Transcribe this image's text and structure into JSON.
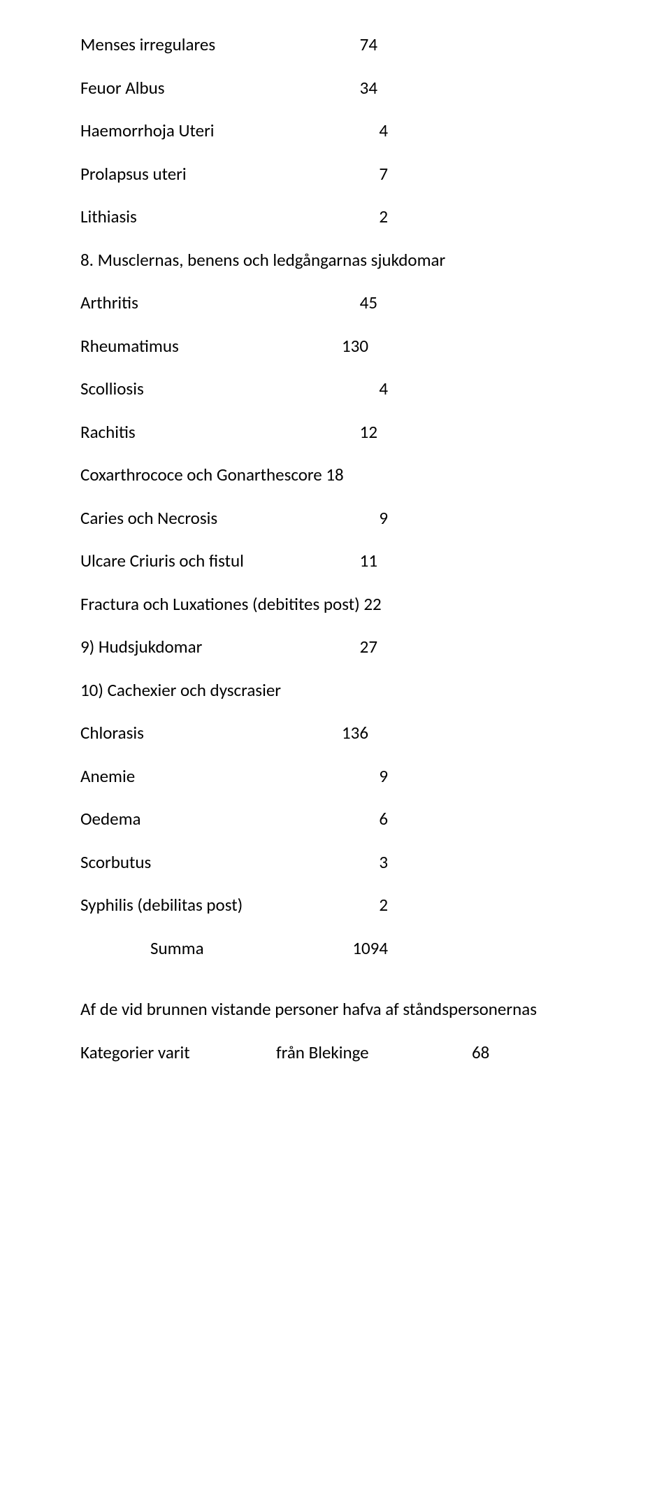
{
  "rows1": [
    {
      "label": "Menses irregulares",
      "value": "74",
      "valCol": 395
    },
    {
      "label": "Feuor Albus",
      "value": "34",
      "valCol": 395
    },
    {
      "label": "Haemorrhoja Uteri",
      "value": "4",
      "valCol": 410
    },
    {
      "label": "Prolapsus uteri",
      "value": "7",
      "valCol": 410
    },
    {
      "label": "Lithiasis",
      "value": "2",
      "valCol": 410
    }
  ],
  "section8": "8. Musclernas, benens och ledgångarnas sjukdomar",
  "rows8": [
    {
      "label": "Arthritis",
      "value": "45",
      "valCol": 395
    },
    {
      "label": "Rheumatimus",
      "value": "130",
      "valCol": 382
    },
    {
      "label": "Scolliosis",
      "value": "4",
      "valCol": 410
    },
    {
      "label": "Rachitis",
      "value": "12",
      "valCol": 395
    },
    {
      "label": "Coxarthrococe och Gonarthescore 18",
      "value": "",
      "valCol": 0
    },
    {
      "label": "Caries och Necrosis",
      "value": "9",
      "valCol": 410
    },
    {
      "label": "Ulcare Criuris och fistul",
      "value": "11",
      "valCol": 395
    },
    {
      "label": "Fractura och Luxationes (debitites post) 22",
      "value": "",
      "valCol": 0
    }
  ],
  "section9": {
    "label": "9) Hudsjukdomar",
    "value": "27",
    "valCol": 395
  },
  "section10": "10) Cachexier och dyscrasier",
  "rows10": [
    {
      "label": "Chlorasis",
      "value": "136",
      "valCol": 382
    },
    {
      "label": "Anemie",
      "value": "9",
      "valCol": 410
    },
    {
      "label": "Oedema",
      "value": "6",
      "valCol": 410
    },
    {
      "label": "Scorbutus",
      "value": "3",
      "valCol": 410
    },
    {
      "label": "Syphilis (debilitas post)",
      "value": "2",
      "valCol": 410
    }
  ],
  "summa": {
    "label": "Summa",
    "value": "1094",
    "valCol": 360
  },
  "para": "Af de vid brunnen vistande personer hafva af ståndspersonernas",
  "lastRow": {
    "label": "Kategorier varit",
    "mid": "från Blekinge",
    "value": "68"
  }
}
